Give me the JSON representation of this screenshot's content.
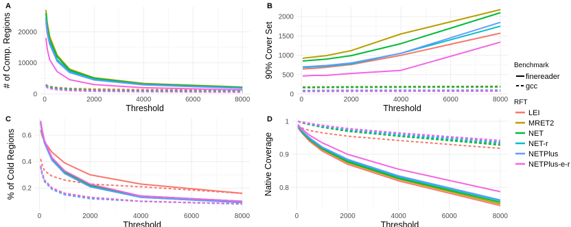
{
  "legend": {
    "benchmark_title": "Benchmark",
    "benchmark_items": [
      {
        "label": "finereader",
        "style": "solid"
      },
      {
        "label": "gcc",
        "style": "dashed"
      }
    ],
    "rft_title": "RFT",
    "rft_items": [
      {
        "label": "LEI",
        "color": "#F8766D"
      },
      {
        "label": "MRET2",
        "color": "#B79F00"
      },
      {
        "label": "NET",
        "color": "#00BA38"
      },
      {
        "label": "NET-r",
        "color": "#00BFC4"
      },
      {
        "label": "NETPlus",
        "color": "#619CFF"
      },
      {
        "label": "NETPlus-e-r",
        "color": "#F564E3"
      }
    ]
  },
  "chart_data": [
    {
      "panel": "A",
      "type": "line",
      "xlabel": "Threshold",
      "ylabel": "# of Comp. Regions",
      "xlim": [
        -200,
        8300
      ],
      "ylim": [
        0,
        28000
      ],
      "xticks": [
        0,
        2000,
        4000,
        6000,
        8000
      ],
      "yticks": [
        0,
        10000,
        20000
      ],
      "x": [
        50,
        100,
        200,
        500,
        1000,
        2000,
        4000,
        8000
      ],
      "series": [
        {
          "name": "LEI",
          "benchmark": "finereader",
          "values": [
            23000,
            19500,
            16000,
            11000,
            7500,
            4800,
            3000,
            1900
          ]
        },
        {
          "name": "MRET2",
          "benchmark": "finereader",
          "values": [
            27000,
            23000,
            18500,
            12500,
            8000,
            5200,
            3400,
            2200
          ]
        },
        {
          "name": "NET",
          "benchmark": "finereader",
          "values": [
            26000,
            22000,
            17500,
            12000,
            7700,
            5000,
            3200,
            2100
          ]
        },
        {
          "name": "NET-r",
          "benchmark": "finereader",
          "values": [
            24500,
            20500,
            16500,
            11000,
            7200,
            4700,
            3000,
            1900
          ]
        },
        {
          "name": "NETPlus",
          "benchmark": "finereader",
          "values": [
            24000,
            20000,
            16000,
            10500,
            6900,
            4500,
            2900,
            1800
          ]
        },
        {
          "name": "NETPlus-e-r",
          "benchmark": "finereader",
          "values": [
            18000,
            14500,
            11000,
            7200,
            4600,
            3000,
            2000,
            1300
          ]
        },
        {
          "name": "LEI",
          "benchmark": "gcc",
          "values": [
            3100,
            2700,
            2400,
            2100,
            1800,
            1600,
            1400,
            1300
          ]
        },
        {
          "name": "MRET2",
          "benchmark": "gcc",
          "values": [
            3000,
            2600,
            2300,
            1900,
            1600,
            1300,
            1100,
            900
          ]
        },
        {
          "name": "NET",
          "benchmark": "gcc",
          "values": [
            2900,
            2500,
            2200,
            1800,
            1500,
            1200,
            1000,
            850
          ]
        },
        {
          "name": "NET-r",
          "benchmark": "gcc",
          "values": [
            2700,
            2300,
            2000,
            1600,
            1300,
            1050,
            850,
            700
          ]
        },
        {
          "name": "NETPlus",
          "benchmark": "gcc",
          "values": [
            2600,
            2200,
            1900,
            1500,
            1200,
            950,
            800,
            650
          ]
        },
        {
          "name": "NETPlus-e-r",
          "benchmark": "gcc",
          "values": [
            2300,
            2000,
            1700,
            1350,
            1050,
            850,
            700,
            550
          ]
        }
      ]
    },
    {
      "panel": "B",
      "type": "line",
      "xlabel": "Threshold",
      "ylabel": "90% Cover Set",
      "xlim": [
        -200,
        8300
      ],
      "ylim": [
        0,
        2250
      ],
      "xticks": [
        0,
        2000,
        4000,
        6000,
        8000
      ],
      "yticks": [
        0,
        500,
        1000,
        1500,
        2000
      ],
      "x": [
        50,
        100,
        200,
        500,
        1000,
        2000,
        4000,
        8000
      ],
      "series": [
        {
          "name": "LEI",
          "benchmark": "finereader",
          "values": [
            640,
            645,
            650,
            660,
            690,
            760,
            1000,
            1570
          ]
        },
        {
          "name": "MRET2",
          "benchmark": "finereader",
          "values": [
            920,
            925,
            935,
            955,
            990,
            1120,
            1550,
            2180
          ]
        },
        {
          "name": "NET",
          "benchmark": "finereader",
          "values": [
            850,
            855,
            860,
            875,
            900,
            990,
            1300,
            2100
          ]
        },
        {
          "name": "NET-r",
          "benchmark": "finereader",
          "values": [
            680,
            685,
            690,
            700,
            720,
            780,
            1050,
            1750
          ]
        },
        {
          "name": "NETPlus",
          "benchmark": "finereader",
          "values": [
            700,
            702,
            705,
            715,
            735,
            800,
            1050,
            1850
          ]
        },
        {
          "name": "NETPlus-e-r",
          "benchmark": "finereader",
          "values": [
            460,
            465,
            470,
            478,
            480,
            530,
            610,
            1340
          ]
        },
        {
          "name": "LEI",
          "benchmark": "gcc",
          "values": [
            160,
            160,
            160,
            162,
            165,
            168,
            172,
            178
          ]
        },
        {
          "name": "MRET2",
          "benchmark": "gcc",
          "values": [
            180,
            180,
            180,
            182,
            185,
            188,
            192,
            198
          ]
        },
        {
          "name": "NET",
          "benchmark": "gcc",
          "values": [
            170,
            170,
            170,
            172,
            175,
            178,
            182,
            188
          ]
        },
        {
          "name": "NET-r",
          "benchmark": "gcc",
          "values": [
            90,
            90,
            90,
            92,
            94,
            96,
            98,
            100
          ]
        },
        {
          "name": "NETPlus",
          "benchmark": "gcc",
          "values": [
            80,
            80,
            80,
            82,
            84,
            86,
            88,
            90
          ]
        },
        {
          "name": "NETPlus-e-r",
          "benchmark": "gcc",
          "values": [
            60,
            60,
            60,
            62,
            64,
            66,
            68,
            70
          ]
        }
      ]
    },
    {
      "panel": "C",
      "type": "line",
      "xlabel": "Threshold",
      "ylabel": "% of Cold Regions",
      "xlim": [
        -200,
        8300
      ],
      "ylim": [
        0.03,
        0.73
      ],
      "xticks": [
        0,
        2000,
        4000,
        6000,
        8000
      ],
      "yticks": [
        0.2,
        0.4,
        0.6
      ],
      "x": [
        50,
        100,
        200,
        500,
        1000,
        2000,
        4000,
        8000
      ],
      "series": [
        {
          "name": "LEI",
          "benchmark": "finereader",
          "values": [
            0.64,
            0.6,
            0.55,
            0.47,
            0.39,
            0.3,
            0.23,
            0.16
          ]
        },
        {
          "name": "MRET2",
          "benchmark": "finereader",
          "values": [
            0.7,
            0.64,
            0.55,
            0.42,
            0.33,
            0.22,
            0.14,
            0.1
          ]
        },
        {
          "name": "NET",
          "benchmark": "finereader",
          "values": [
            0.7,
            0.64,
            0.55,
            0.42,
            0.32,
            0.22,
            0.14,
            0.1
          ]
        },
        {
          "name": "NET-r",
          "benchmark": "finereader",
          "values": [
            0.69,
            0.63,
            0.54,
            0.41,
            0.31,
            0.21,
            0.13,
            0.09
          ]
        },
        {
          "name": "NETPlus",
          "benchmark": "finereader",
          "values": [
            0.69,
            0.63,
            0.54,
            0.41,
            0.31,
            0.21,
            0.13,
            0.09
          ]
        },
        {
          "name": "NETPlus-e-r",
          "benchmark": "finereader",
          "values": [
            0.71,
            0.65,
            0.56,
            0.43,
            0.33,
            0.23,
            0.14,
            0.1
          ]
        },
        {
          "name": "LEI",
          "benchmark": "gcc",
          "values": [
            0.42,
            0.38,
            0.33,
            0.29,
            0.26,
            0.23,
            0.21,
            0.16
          ]
        },
        {
          "name": "MRET2",
          "benchmark": "gcc",
          "values": [
            0.37,
            0.32,
            0.26,
            0.2,
            0.16,
            0.13,
            0.1,
            0.08
          ]
        },
        {
          "name": "NET",
          "benchmark": "gcc",
          "values": [
            0.37,
            0.32,
            0.26,
            0.2,
            0.16,
            0.13,
            0.1,
            0.08
          ]
        },
        {
          "name": "NET-r",
          "benchmark": "gcc",
          "values": [
            0.36,
            0.31,
            0.25,
            0.19,
            0.15,
            0.12,
            0.1,
            0.08
          ]
        },
        {
          "name": "NETPlus",
          "benchmark": "gcc",
          "values": [
            0.36,
            0.31,
            0.25,
            0.19,
            0.15,
            0.12,
            0.1,
            0.08
          ]
        },
        {
          "name": "NETPlus-e-r",
          "benchmark": "gcc",
          "values": [
            0.37,
            0.32,
            0.26,
            0.2,
            0.16,
            0.13,
            0.1,
            0.08
          ]
        }
      ]
    },
    {
      "panel": "D",
      "type": "line",
      "xlabel": "Threshold",
      "ylabel": "Native  Coverage",
      "xlim": [
        -200,
        8300
      ],
      "ylim": [
        0.73,
        1.01
      ],
      "xticks": [
        0,
        2000,
        4000,
        6000,
        8000
      ],
      "yticks": [
        0.8,
        0.9,
        1.0
      ],
      "x": [
        50,
        100,
        200,
        500,
        1000,
        2000,
        4000,
        8000
      ],
      "series": [
        {
          "name": "LEI",
          "benchmark": "finereader",
          "values": [
            0.98,
            0.975,
            0.965,
            0.94,
            0.91,
            0.87,
            0.82,
            0.745
          ]
        },
        {
          "name": "MRET2",
          "benchmark": "finereader",
          "values": [
            0.985,
            0.978,
            0.968,
            0.945,
            0.915,
            0.875,
            0.825,
            0.75
          ]
        },
        {
          "name": "NET",
          "benchmark": "finereader",
          "values": [
            0.985,
            0.978,
            0.968,
            0.945,
            0.917,
            0.878,
            0.828,
            0.755
          ]
        },
        {
          "name": "NET-r",
          "benchmark": "finereader",
          "values": [
            0.985,
            0.98,
            0.97,
            0.948,
            0.92,
            0.882,
            0.832,
            0.76
          ]
        },
        {
          "name": "NETPlus",
          "benchmark": "finereader",
          "values": [
            0.987,
            0.981,
            0.972,
            0.95,
            0.922,
            0.885,
            0.835,
            0.762
          ]
        },
        {
          "name": "NETPlus-e-r",
          "benchmark": "finereader",
          "values": [
            0.99,
            0.985,
            0.977,
            0.958,
            0.935,
            0.9,
            0.855,
            0.787
          ]
        },
        {
          "name": "LEI",
          "benchmark": "gcc",
          "values": [
            0.99,
            0.985,
            0.98,
            0.972,
            0.965,
            0.955,
            0.942,
            0.918
          ]
        },
        {
          "name": "MRET2",
          "benchmark": "gcc",
          "values": [
            1.0,
            0.998,
            0.995,
            0.99,
            0.982,
            0.97,
            0.955,
            0.93
          ]
        },
        {
          "name": "NET",
          "benchmark": "gcc",
          "values": [
            1.0,
            0.998,
            0.995,
            0.99,
            0.982,
            0.97,
            0.955,
            0.928
          ]
        },
        {
          "name": "NET-r",
          "benchmark": "gcc",
          "values": [
            1.0,
            0.998,
            0.996,
            0.991,
            0.984,
            0.973,
            0.958,
            0.934
          ]
        },
        {
          "name": "NETPlus",
          "benchmark": "gcc",
          "values": [
            1.0,
            0.999,
            0.997,
            0.993,
            0.986,
            0.976,
            0.962,
            0.938
          ]
        },
        {
          "name": "NETPlus-e-r",
          "benchmark": "gcc",
          "values": [
            1.0,
            0.999,
            0.998,
            0.994,
            0.988,
            0.978,
            0.965,
            0.942
          ]
        }
      ]
    }
  ]
}
